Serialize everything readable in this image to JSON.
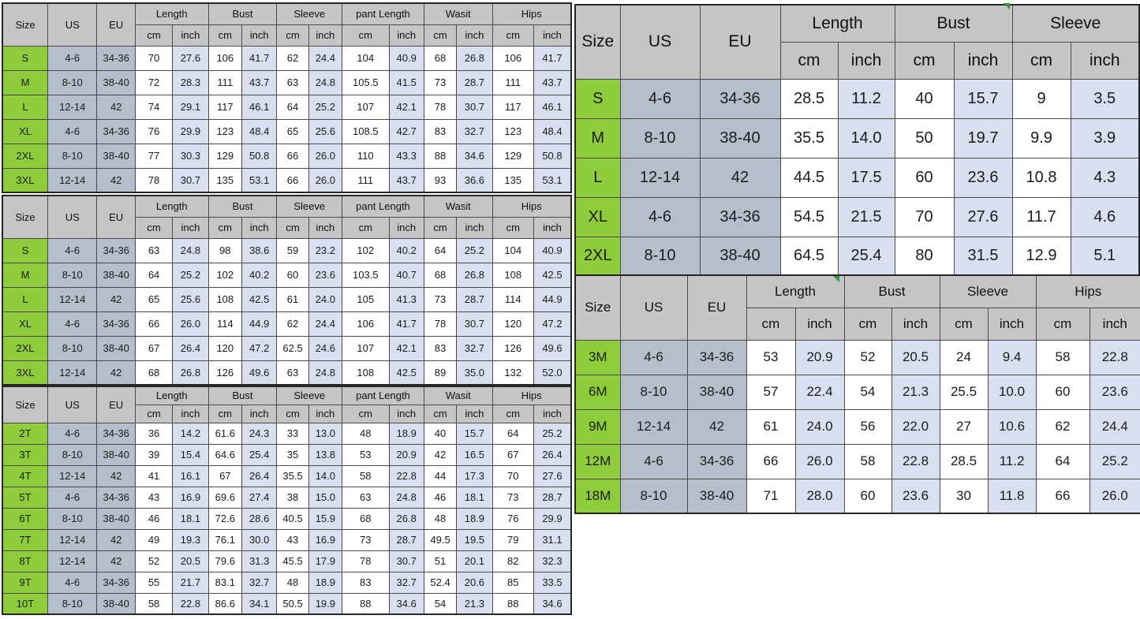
{
  "colors": {
    "size_green": "#8fcc3b",
    "us_eu_blue": "#b5bfcc",
    "inch_blue": "#d9dfef",
    "header_gray": "#c5c5c5",
    "cm_white": "#ffffff"
  },
  "chart_data": [
    {
      "type": "table",
      "header": {
        "col1": "Size",
        "col2": "US",
        "col3": "EU",
        "groups": [
          "Length",
          "Bust",
          "Sleeve",
          "pant Length",
          "Wasit",
          "Hips"
        ],
        "unit_cm": "cm",
        "unit_inch": "inch"
      },
      "rows": [
        [
          "S",
          "4-6",
          "34-36",
          "70",
          "27.6",
          "106",
          "41.7",
          "62",
          "24.4",
          "104",
          "40.9",
          "68",
          "26.8",
          "106",
          "41.7"
        ],
        [
          "M",
          "8-10",
          "38-40",
          "72",
          "28.3",
          "111",
          "43.7",
          "63",
          "24.8",
          "105.5",
          "41.5",
          "73",
          "28.7",
          "111",
          "43.7"
        ],
        [
          "L",
          "12-14",
          "42",
          "74",
          "29.1",
          "117",
          "46.1",
          "64",
          "25.2",
          "107",
          "42.1",
          "78",
          "30.7",
          "117",
          "46.1"
        ],
        [
          "XL",
          "4-6",
          "34-36",
          "76",
          "29.9",
          "123",
          "48.4",
          "65",
          "25.6",
          "108.5",
          "42.7",
          "83",
          "32.7",
          "123",
          "48.4"
        ],
        [
          "2XL",
          "8-10",
          "38-40",
          "77",
          "30.3",
          "129",
          "50.8",
          "66",
          "26.0",
          "110",
          "43.3",
          "88",
          "34.6",
          "129",
          "50.8"
        ],
        [
          "3XL",
          "12-14",
          "42",
          "78",
          "30.7",
          "135",
          "53.1",
          "66",
          "26.0",
          "111",
          "43.7",
          "93",
          "36.6",
          "135",
          "53.1"
        ]
      ]
    },
    {
      "type": "table",
      "header": {
        "col1": "Size",
        "col2": "US",
        "col3": "EU",
        "groups": [
          "Length",
          "Bust",
          "Sleeve",
          "pant Length",
          "Wasit",
          "Hips"
        ],
        "unit_cm": "cm",
        "unit_inch": "inch"
      },
      "rows": [
        [
          "S",
          "4-6",
          "34-36",
          "63",
          "24.8",
          "98",
          "38.6",
          "59",
          "23.2",
          "102",
          "40.2",
          "64",
          "25.2",
          "104",
          "40.9"
        ],
        [
          "M",
          "8-10",
          "38-40",
          "64",
          "25.2",
          "102",
          "40.2",
          "60",
          "23.6",
          "103.5",
          "40.7",
          "68",
          "26.8",
          "108",
          "42.5"
        ],
        [
          "L",
          "12-14",
          "42",
          "65",
          "25.6",
          "108",
          "42.5",
          "61",
          "24.0",
          "105",
          "41.3",
          "73",
          "28.7",
          "114",
          "44.9"
        ],
        [
          "XL",
          "4-6",
          "34-36",
          "66",
          "26.0",
          "114",
          "44.9",
          "62",
          "24.4",
          "106",
          "41.7",
          "78",
          "30.7",
          "120",
          "47.2"
        ],
        [
          "2XL",
          "8-10",
          "38-40",
          "67",
          "26.4",
          "120",
          "47.2",
          "62.5",
          "24.6",
          "107",
          "42.1",
          "83",
          "32.7",
          "126",
          "49.6"
        ],
        [
          "3XL",
          "12-14",
          "42",
          "68",
          "26.8",
          "126",
          "49.6",
          "63",
          "24.8",
          "108",
          "42.5",
          "89",
          "35.0",
          "132",
          "52.0"
        ]
      ]
    },
    {
      "type": "table",
      "header": {
        "col1": "Size",
        "col2": "US",
        "col3": "EU",
        "groups": [
          "Length",
          "Bust",
          "Sleeve",
          "pant Length",
          "Wasit",
          "Hips"
        ],
        "unit_cm": "cm",
        "unit_inch": "inch"
      },
      "rows": [
        [
          "2T",
          "4-6",
          "34-36",
          "36",
          "14.2",
          "61.6",
          "24.3",
          "33",
          "13.0",
          "48",
          "18.9",
          "40",
          "15.7",
          "64",
          "25.2"
        ],
        [
          "3T",
          "8-10",
          "38-40",
          "39",
          "15.4",
          "64.6",
          "25.4",
          "35",
          "13.8",
          "53",
          "20.9",
          "42",
          "16.5",
          "67",
          "26.4"
        ],
        [
          "4T",
          "12-14",
          "42",
          "41",
          "16.1",
          "67",
          "26.4",
          "35.5",
          "14.0",
          "58",
          "22.8",
          "44",
          "17.3",
          "70",
          "27.6"
        ],
        [
          "5T",
          "4-6",
          "34-36",
          "43",
          "16.9",
          "69.6",
          "27.4",
          "38",
          "15.0",
          "63",
          "24.8",
          "46",
          "18.1",
          "73",
          "28.7"
        ],
        [
          "6T",
          "8-10",
          "38-40",
          "46",
          "18.1",
          "72.6",
          "28.6",
          "40.5",
          "15.9",
          "68",
          "26.8",
          "48",
          "18.9",
          "76",
          "29.9"
        ],
        [
          "7T",
          "12-14",
          "42",
          "49",
          "19.3",
          "76.1",
          "30.0",
          "43",
          "16.9",
          "73",
          "28.7",
          "49.5",
          "19.5",
          "79",
          "31.1"
        ],
        [
          "8T",
          "12-14",
          "42",
          "52",
          "20.5",
          "79.6",
          "31.3",
          "45.5",
          "17.9",
          "78",
          "30.7",
          "51",
          "20.1",
          "82",
          "32.3"
        ],
        [
          "9T",
          "4-6",
          "34-36",
          "55",
          "21.7",
          "83.1",
          "32.7",
          "48",
          "18.9",
          "83",
          "32.7",
          "52.4",
          "20.6",
          "85",
          "33.5"
        ],
        [
          "10T",
          "8-10",
          "38-40",
          "58",
          "22.8",
          "86.6",
          "34.1",
          "50.5",
          "19.9",
          "88",
          "34.6",
          "54",
          "21.3",
          "88",
          "34.6"
        ]
      ]
    },
    {
      "type": "table",
      "header": {
        "col1": "Size",
        "col2": "US",
        "col3": "EU",
        "groups": [
          "Length",
          "Bust",
          "Sleeve"
        ],
        "unit_cm": "cm",
        "unit_inch": "inch"
      },
      "rows": [
        [
          "S",
          "4-6",
          "34-36",
          "28.5",
          "11.2",
          "40",
          "15.7",
          "9",
          "3.5"
        ],
        [
          "M",
          "8-10",
          "38-40",
          "35.5",
          "14.0",
          "50",
          "19.7",
          "9.9",
          "3.9"
        ],
        [
          "L",
          "12-14",
          "42",
          "44.5",
          "17.5",
          "60",
          "23.6",
          "10.8",
          "4.3"
        ],
        [
          "XL",
          "4-6",
          "34-36",
          "54.5",
          "21.5",
          "70",
          "27.6",
          "11.7",
          "4.6"
        ],
        [
          "2XL",
          "8-10",
          "38-40",
          "64.5",
          "25.4",
          "80",
          "31.5",
          "12.9",
          "5.1"
        ]
      ]
    },
    {
      "type": "table",
      "header": {
        "col1": "Size",
        "col2": "US",
        "col3": "EU",
        "groups": [
          "Length",
          "Bust",
          "Sleeve",
          "Hips"
        ],
        "unit_cm": "cm",
        "unit_inch": "inch"
      },
      "rows": [
        [
          "3M",
          "4-6",
          "34-36",
          "53",
          "20.9",
          "52",
          "20.5",
          "24",
          "9.4",
          "58",
          "22.8"
        ],
        [
          "6M",
          "8-10",
          "38-40",
          "57",
          "22.4",
          "54",
          "21.3",
          "25.5",
          "10.0",
          "60",
          "23.6"
        ],
        [
          "9M",
          "12-14",
          "42",
          "61",
          "24.0",
          "56",
          "22.0",
          "27",
          "10.6",
          "62",
          "24.4"
        ],
        [
          "12M",
          "4-6",
          "34-36",
          "66",
          "26.0",
          "58",
          "22.8",
          "28.5",
          "11.2",
          "64",
          "25.2"
        ],
        [
          "18M",
          "8-10",
          "38-40",
          "71",
          "28.0",
          "60",
          "23.6",
          "30",
          "11.8",
          "66",
          "26.0"
        ]
      ]
    }
  ]
}
